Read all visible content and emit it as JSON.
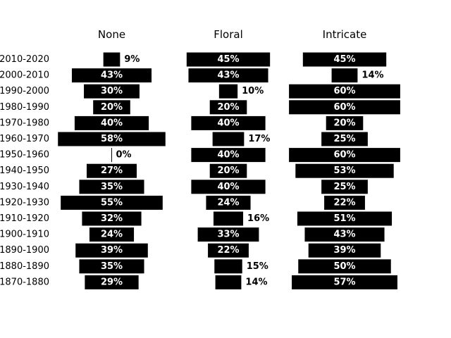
{
  "chart_data": {
    "type": "bar",
    "orientation": "horizontal-centered",
    "categories": [
      "2010-2020",
      "2000-2010",
      "1990-2000",
      "1980-1990",
      "1970-1980",
      "1960-1970",
      "1950-1960",
      "1940-1950",
      "1930-1940",
      "1920-1930",
      "1910-1920",
      "1900-1910",
      "1890-1900",
      "1880-1890",
      "1870-1880"
    ],
    "series": [
      {
        "name": "None",
        "values": [
          9,
          43,
          30,
          20,
          40,
          58,
          0,
          27,
          35,
          55,
          32,
          24,
          39,
          35,
          29
        ],
        "labels": [
          "9%",
          "43%",
          "30%",
          "20%",
          "40%",
          "58%",
          "0%",
          "27%",
          "35%",
          "55%",
          "32%",
          "24%",
          "39%",
          "35%",
          "29%"
        ]
      },
      {
        "name": "Floral",
        "values": [
          45,
          43,
          10,
          20,
          40,
          17,
          40,
          20,
          40,
          24,
          16,
          33,
          22,
          15,
          14
        ],
        "labels": [
          "45%",
          "43%",
          "10%",
          "20%",
          "40%",
          "17%",
          "40%",
          "20%",
          "40%",
          "24%",
          "16%",
          "33%",
          "22%",
          "15%",
          "14%"
        ]
      },
      {
        "name": "Intricate",
        "values": [
          45,
          14,
          60,
          60,
          20,
          25,
          60,
          53,
          25,
          22,
          51,
          43,
          39,
          50,
          57
        ],
        "labels": [
          "45%",
          "14%",
          "60%",
          "60%",
          "20%",
          "25%",
          "60%",
          "53%",
          "25%",
          "22%",
          "51%",
          "43%",
          "39%",
          "50%",
          "57%"
        ]
      }
    ],
    "bar_color": "#000000",
    "label_color_inside": "#ffffff",
    "label_color_outside": "#000000",
    "grid": false,
    "legend": "none"
  }
}
